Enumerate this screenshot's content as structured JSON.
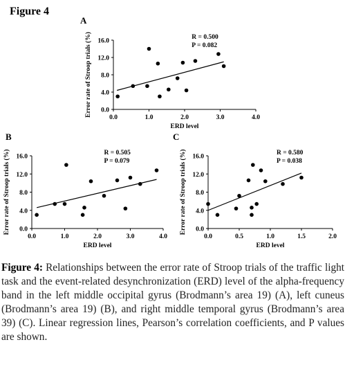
{
  "figure_title": "Figure 4",
  "caption": {
    "label": "Figure 4:",
    "text": "Relationships between the error rate of Stroop trials of the traffic light task and the event-related desynchronization (ERD) level of the alpha-frequency band in the left middle occipital gyrus (Brodmann’s area 19) (A), left cuneus (Brodmann’s area 19) (B), and right middle temporal gyrus (Brodmann’s area 39) (C). Linear regression lines, Pearson’s correlation coefficients, and P values are shown."
  },
  "chart_data": [
    {
      "panel": "A",
      "type": "scatter",
      "ylabel": "Error rate of Stroop trials (%)",
      "xlabel": "ERD level",
      "xlim": [
        0.0,
        4.0
      ],
      "ylim": [
        0.0,
        16.0
      ],
      "xticks": [
        "0.0",
        "1.0",
        "2.0",
        "3.0",
        "4.0"
      ],
      "yticks": [
        "0.0",
        "4.0",
        "8.0",
        "12.0",
        "16.0"
      ],
      "r_text": "R = 0.500",
      "p_text": "P = 0.082",
      "points": [
        [
          0.12,
          3.0
        ],
        [
          0.55,
          5.4
        ],
        [
          0.95,
          5.4
        ],
        [
          1.0,
          14.0
        ],
        [
          1.25,
          10.6
        ],
        [
          1.3,
          3.0
        ],
        [
          1.55,
          4.6
        ],
        [
          1.8,
          7.2
        ],
        [
          1.95,
          10.8
        ],
        [
          2.05,
          4.4
        ],
        [
          2.3,
          11.2
        ],
        [
          2.95,
          12.8
        ],
        [
          3.1,
          10.0
        ]
      ],
      "regression": [
        [
          0.1,
          4.4
        ],
        [
          3.1,
          11.0
        ]
      ]
    },
    {
      "panel": "B",
      "type": "scatter",
      "ylabel": "Error rate of Stroop trials (%)",
      "xlabel": "ERD level",
      "xlim": [
        0.0,
        4.0
      ],
      "ylim": [
        0.0,
        16.0
      ],
      "xticks": [
        "0.0",
        "1.0",
        "2.0",
        "3.0",
        "4.0"
      ],
      "yticks": [
        "0.0",
        "4.0",
        "8.0",
        "12.0",
        "16.0"
      ],
      "r_text": "R = 0.505",
      "p_text": "P = 0.079",
      "points": [
        [
          0.15,
          3.0
        ],
        [
          0.7,
          5.4
        ],
        [
          1.0,
          5.4
        ],
        [
          1.05,
          14.0
        ],
        [
          1.55,
          3.0
        ],
        [
          1.6,
          4.6
        ],
        [
          1.8,
          10.4
        ],
        [
          2.2,
          7.2
        ],
        [
          2.6,
          10.6
        ],
        [
          2.85,
          4.4
        ],
        [
          3.0,
          11.2
        ],
        [
          3.3,
          9.8
        ],
        [
          3.8,
          12.8
        ]
      ],
      "regression": [
        [
          0.15,
          4.6
        ],
        [
          3.8,
          10.8
        ]
      ]
    },
    {
      "panel": "C",
      "type": "scatter",
      "ylabel": "Error rate of Stroop trials (%)",
      "xlabel": "ERD level",
      "xlim": [
        0.0,
        2.0
      ],
      "ylim": [
        0.0,
        16.0
      ],
      "xticks": [
        "0.0",
        "0.5",
        "1.0",
        "1.5",
        "2.0"
      ],
      "yticks": [
        "0.0",
        "4.0",
        "8.0",
        "12.0",
        "16.0"
      ],
      "r_text": "R = 0.580",
      "p_text": "P = 0.038",
      "points": [
        [
          0.0,
          5.4
        ],
        [
          0.15,
          3.0
        ],
        [
          0.45,
          4.4
        ],
        [
          0.5,
          7.2
        ],
        [
          0.65,
          10.6
        ],
        [
          0.7,
          4.6
        ],
        [
          0.7,
          3.0
        ],
        [
          0.72,
          14.0
        ],
        [
          0.78,
          5.4
        ],
        [
          0.85,
          12.8
        ],
        [
          0.92,
          10.4
        ],
        [
          1.2,
          9.8
        ],
        [
          1.5,
          11.2
        ]
      ],
      "regression": [
        [
          0.0,
          4.0
        ],
        [
          1.5,
          12.2
        ]
      ]
    }
  ]
}
